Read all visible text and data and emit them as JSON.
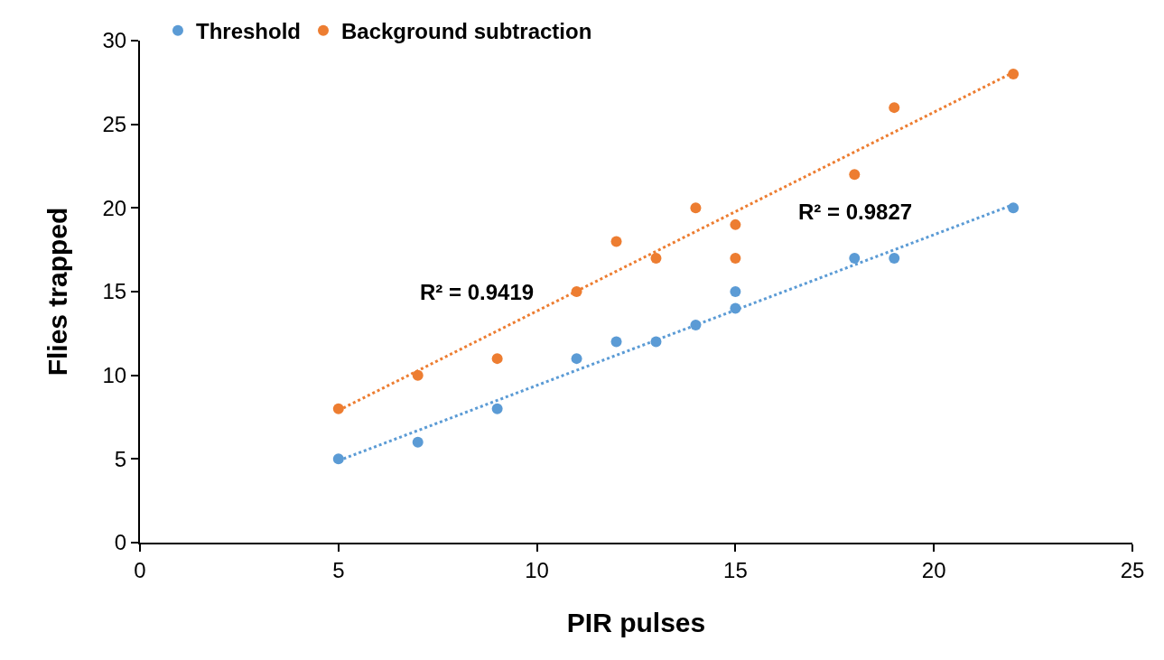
{
  "chart_data": {
    "type": "scatter",
    "xlabel": "PIR pulses",
    "ylabel": "Flies trapped",
    "series": [
      {
        "name": "Threshold",
        "color": "#5b9bd5",
        "x": [
          5,
          7,
          9,
          11,
          12,
          13,
          14,
          15,
          15,
          18,
          19,
          22
        ],
        "values": [
          5,
          6,
          8,
          11,
          12,
          12,
          13,
          14,
          15,
          17,
          17,
          20
        ],
        "marker": "circle"
      },
      {
        "name": "Background subtraction",
        "color": "#ed7d31",
        "x": [
          5,
          7,
          9,
          11,
          12,
          13,
          14,
          15,
          15,
          18,
          19,
          22
        ],
        "values": [
          8,
          10,
          11,
          15,
          18,
          17,
          20,
          19,
          17,
          22,
          26,
          28
        ],
        "marker": "circle"
      },
      {
        "type": "line",
        "color": "#5b9bd5",
        "x": [
          5,
          22
        ],
        "values": [
          4.9,
          20.2
        ],
        "line_style": "dotted",
        "marker": "none"
      },
      {
        "type": "line",
        "color": "#ed7d31",
        "x": [
          5,
          22
        ],
        "values": [
          7.9,
          28.1
        ],
        "line_style": "dotted",
        "marker": "none"
      }
    ],
    "annotations": [
      "R² = 0.9419",
      "R² = 0.9827"
    ],
    "xlim": [
      0,
      25
    ],
    "xticks": [
      0,
      5,
      10,
      15,
      20,
      25
    ],
    "ylim": [
      0,
      30
    ],
    "yticks": [
      0,
      5,
      10,
      15,
      20,
      25,
      30
    ],
    "grid": false,
    "legend": "top left"
  }
}
